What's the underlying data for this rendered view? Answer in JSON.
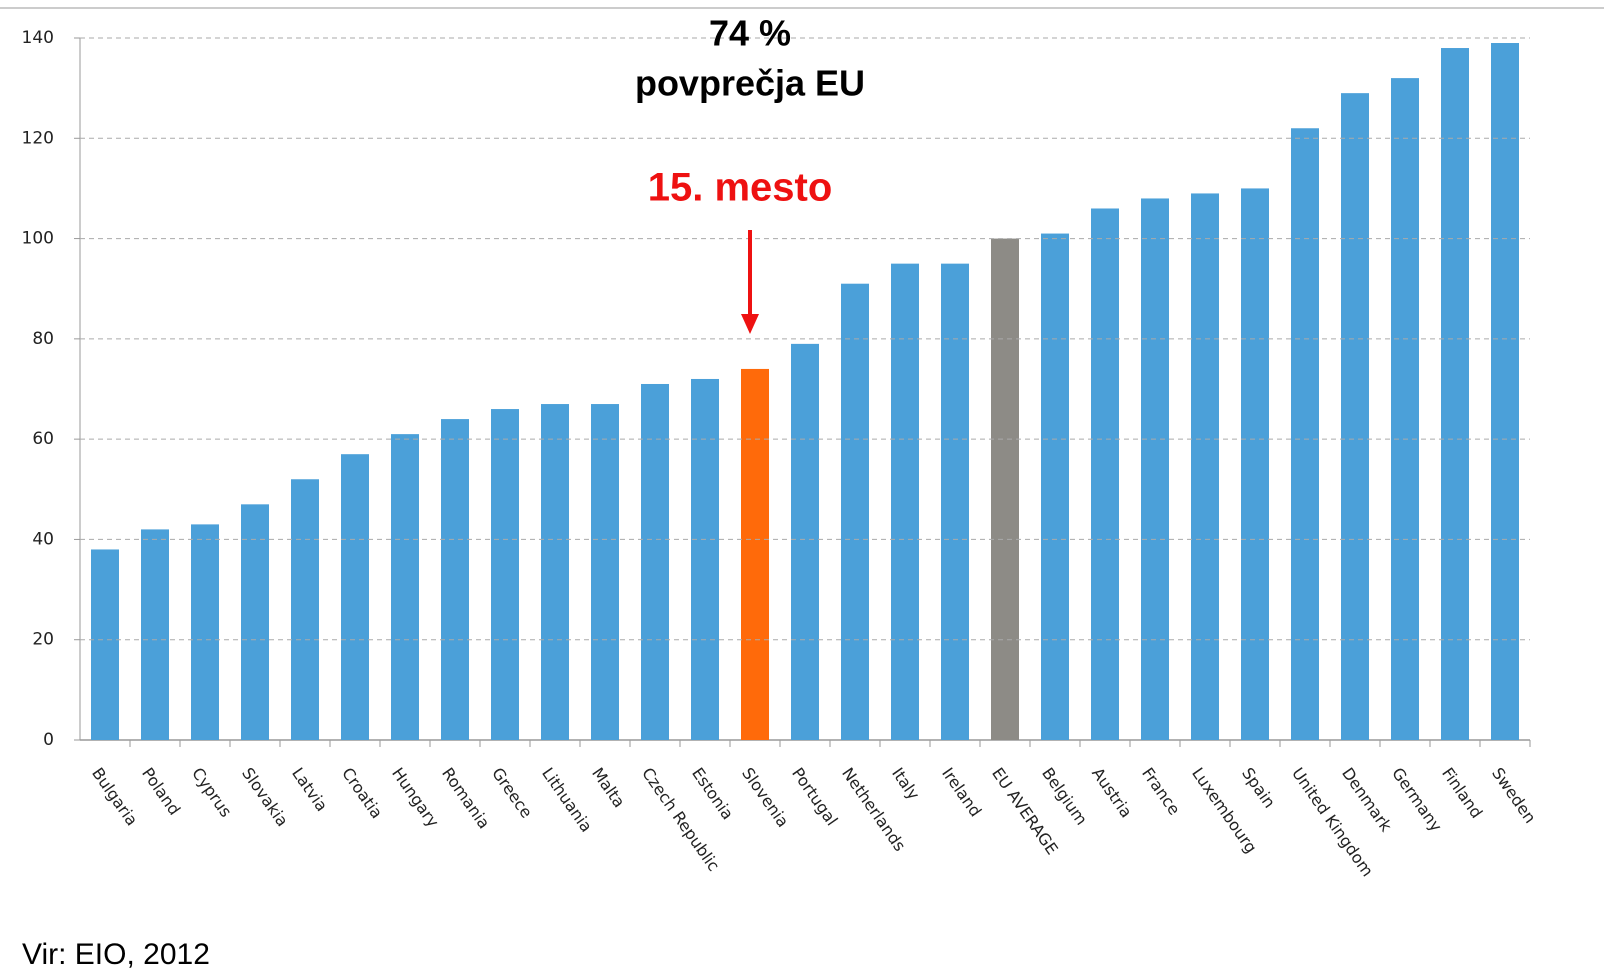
{
  "chart_data": {
    "type": "bar",
    "categories": [
      "Bulgaria",
      "Poland",
      "Cyprus",
      "Slovakia",
      "Latvia",
      "Croatia",
      "Hungary",
      "Romania",
      "Greece",
      "Lithuania",
      "Malta",
      "Czech Republic",
      "Estonia",
      "Slovenia",
      "Portugal",
      "Netherlands",
      "Italy",
      "Ireland",
      "EU AVERAGE",
      "Belgium",
      "Austria",
      "France",
      "Luxembourg",
      "Spain",
      "United Kingdom",
      "Denmark",
      "Germany",
      "Finland",
      "Sweden"
    ],
    "values": [
      38,
      42,
      43,
      47,
      52,
      57,
      61,
      64,
      66,
      67,
      67,
      71,
      72,
      74,
      79,
      91,
      95,
      95,
      100,
      101,
      106,
      108,
      109,
      110,
      122,
      129,
      132,
      138,
      139
    ],
    "colors": [
      "#4ba0d9",
      "#4ba0d9",
      "#4ba0d9",
      "#4ba0d9",
      "#4ba0d9",
      "#4ba0d9",
      "#4ba0d9",
      "#4ba0d9",
      "#4ba0d9",
      "#4ba0d9",
      "#4ba0d9",
      "#4ba0d9",
      "#4ba0d9",
      "#ff6a0a",
      "#4ba0d9",
      "#4ba0d9",
      "#4ba0d9",
      "#4ba0d9",
      "#8d8b86",
      "#4ba0d9",
      "#4ba0d9",
      "#4ba0d9",
      "#4ba0d9",
      "#4ba0d9",
      "#4ba0d9",
      "#4ba0d9",
      "#4ba0d9",
      "#4ba0d9",
      "#4ba0d9"
    ],
    "ylim": [
      0,
      140
    ],
    "yticks": [
      0,
      20,
      40,
      60,
      80,
      100,
      120,
      140
    ],
    "grid": true,
    "annotations": [
      "74 %",
      "povprečja EU",
      "15. mesto"
    ],
    "source": "Vir: EIO, 2012"
  }
}
